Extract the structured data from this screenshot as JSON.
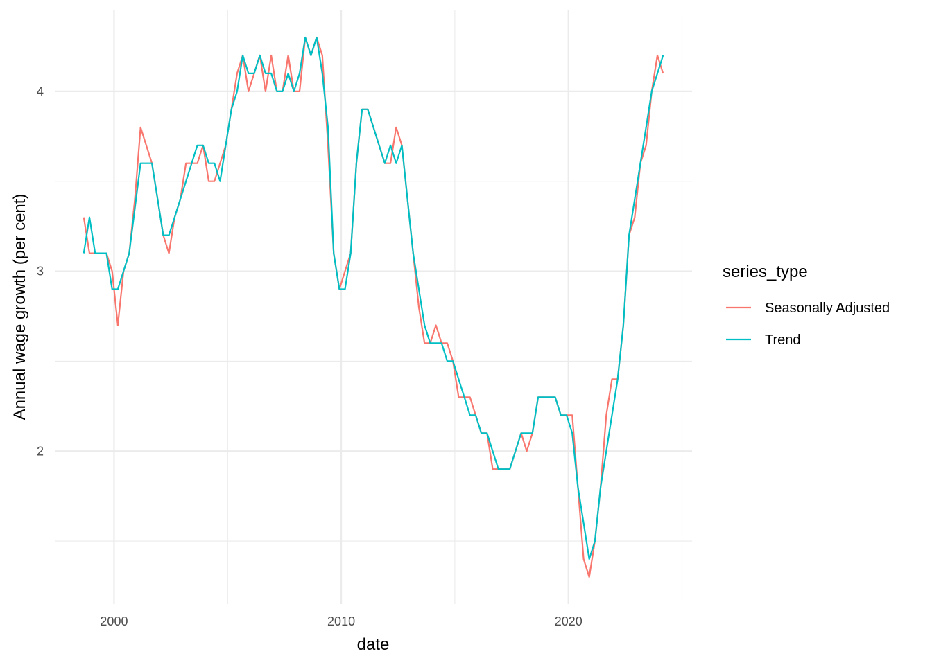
{
  "chart_data": {
    "type": "line",
    "title": "",
    "xlabel": "date",
    "ylabel": "Annual wage growth (per cent)",
    "xlim": [
      "1998-09",
      "2024-03"
    ],
    "ylim": [
      1.3,
      4.3
    ],
    "x_ticks": [
      "2000",
      "2010",
      "2020"
    ],
    "y_ticks": [
      "2",
      "3",
      "4"
    ],
    "grid": true,
    "legend": {
      "title": "series_type",
      "position": "right"
    },
    "x": [
      "1998-09",
      "1998-12",
      "1999-03",
      "1999-06",
      "1999-09",
      "1999-12",
      "2000-03",
      "2000-06",
      "2000-09",
      "2000-12",
      "2001-03",
      "2001-06",
      "2001-09",
      "2001-12",
      "2002-03",
      "2002-06",
      "2002-09",
      "2002-12",
      "2003-03",
      "2003-06",
      "2003-09",
      "2003-12",
      "2004-03",
      "2004-06",
      "2004-09",
      "2004-12",
      "2005-03",
      "2005-06",
      "2005-09",
      "2005-12",
      "2006-03",
      "2006-06",
      "2006-09",
      "2006-12",
      "2007-03",
      "2007-06",
      "2007-09",
      "2007-12",
      "2008-03",
      "2008-06",
      "2008-09",
      "2008-12",
      "2009-03",
      "2009-06",
      "2009-09",
      "2009-12",
      "2010-03",
      "2010-06",
      "2010-09",
      "2010-12",
      "2011-03",
      "2011-06",
      "2011-09",
      "2011-12",
      "2012-03",
      "2012-06",
      "2012-09",
      "2012-12",
      "2013-03",
      "2013-06",
      "2013-09",
      "2013-12",
      "2014-03",
      "2014-06",
      "2014-09",
      "2014-12",
      "2015-03",
      "2015-06",
      "2015-09",
      "2015-12",
      "2016-03",
      "2016-06",
      "2016-09",
      "2016-12",
      "2017-03",
      "2017-06",
      "2017-09",
      "2017-12",
      "2018-03",
      "2018-06",
      "2018-09",
      "2018-12",
      "2019-03",
      "2019-06",
      "2019-09",
      "2019-12",
      "2020-03",
      "2020-06",
      "2020-09",
      "2020-12",
      "2021-03",
      "2021-06",
      "2021-09",
      "2021-12",
      "2022-03",
      "2022-06",
      "2022-09",
      "2022-12",
      "2023-03",
      "2023-06",
      "2023-09",
      "2023-12",
      "2024-03"
    ],
    "series": [
      {
        "name": "Seasonally Adjusted",
        "color": "#F8766D",
        "values": [
          3.3,
          3.1,
          3.1,
          3.1,
          3.1,
          3.0,
          2.7,
          3.0,
          3.1,
          3.4,
          3.8,
          3.7,
          3.6,
          3.4,
          3.2,
          3.1,
          3.3,
          3.4,
          3.6,
          3.6,
          3.6,
          3.7,
          3.5,
          3.5,
          3.6,
          3.7,
          3.9,
          4.1,
          4.2,
          4.0,
          4.1,
          4.2,
          4.0,
          4.2,
          4.0,
          4.0,
          4.2,
          4.0,
          4.0,
          4.3,
          4.2,
          4.3,
          4.2,
          3.7,
          3.1,
          2.9,
          3.0,
          3.1,
          3.6,
          3.9,
          3.9,
          3.8,
          3.7,
          3.6,
          3.6,
          3.8,
          3.7,
          3.4,
          3.1,
          2.8,
          2.6,
          2.6,
          2.7,
          2.6,
          2.6,
          2.5,
          2.3,
          2.3,
          2.3,
          2.2,
          2.1,
          2.1,
          1.9,
          1.9,
          1.9,
          1.9,
          2.0,
          2.1,
          2.0,
          2.1,
          2.3,
          2.3,
          2.3,
          2.3,
          2.2,
          2.2,
          2.2,
          1.8,
          1.4,
          1.3,
          1.5,
          1.8,
          2.2,
          2.4,
          2.4,
          2.7,
          3.2,
          3.3,
          3.6,
          3.7,
          4.0,
          4.2,
          4.1
        ]
      },
      {
        "name": "Trend",
        "color": "#00BFC4",
        "values": [
          3.1,
          3.3,
          3.1,
          3.1,
          3.1,
          2.9,
          2.9,
          3.0,
          3.1,
          3.35,
          3.6,
          3.6,
          3.6,
          3.4,
          3.2,
          3.2,
          3.3,
          3.4,
          3.5,
          3.6,
          3.7,
          3.7,
          3.6,
          3.6,
          3.5,
          3.7,
          3.9,
          4.0,
          4.2,
          4.1,
          4.1,
          4.2,
          4.1,
          4.1,
          4.0,
          4.0,
          4.1,
          4.0,
          4.1,
          4.3,
          4.2,
          4.3,
          4.1,
          3.8,
          3.1,
          2.9,
          2.9,
          3.1,
          3.6,
          3.9,
          3.9,
          3.8,
          3.7,
          3.6,
          3.7,
          3.6,
          3.7,
          3.4,
          3.1,
          2.9,
          2.7,
          2.6,
          2.6,
          2.6,
          2.5,
          2.5,
          2.4,
          2.3,
          2.2,
          2.2,
          2.1,
          2.1,
          2.0,
          1.9,
          1.9,
          1.9,
          2.0,
          2.1,
          2.1,
          2.1,
          2.3,
          2.3,
          2.3,
          2.3,
          2.2,
          2.2,
          2.1,
          1.8,
          1.6,
          1.4,
          1.5,
          1.8,
          2.0,
          2.2,
          2.4,
          2.7,
          3.2,
          3.4,
          3.6,
          3.8,
          4.0,
          4.1,
          4.2
        ]
      }
    ]
  }
}
